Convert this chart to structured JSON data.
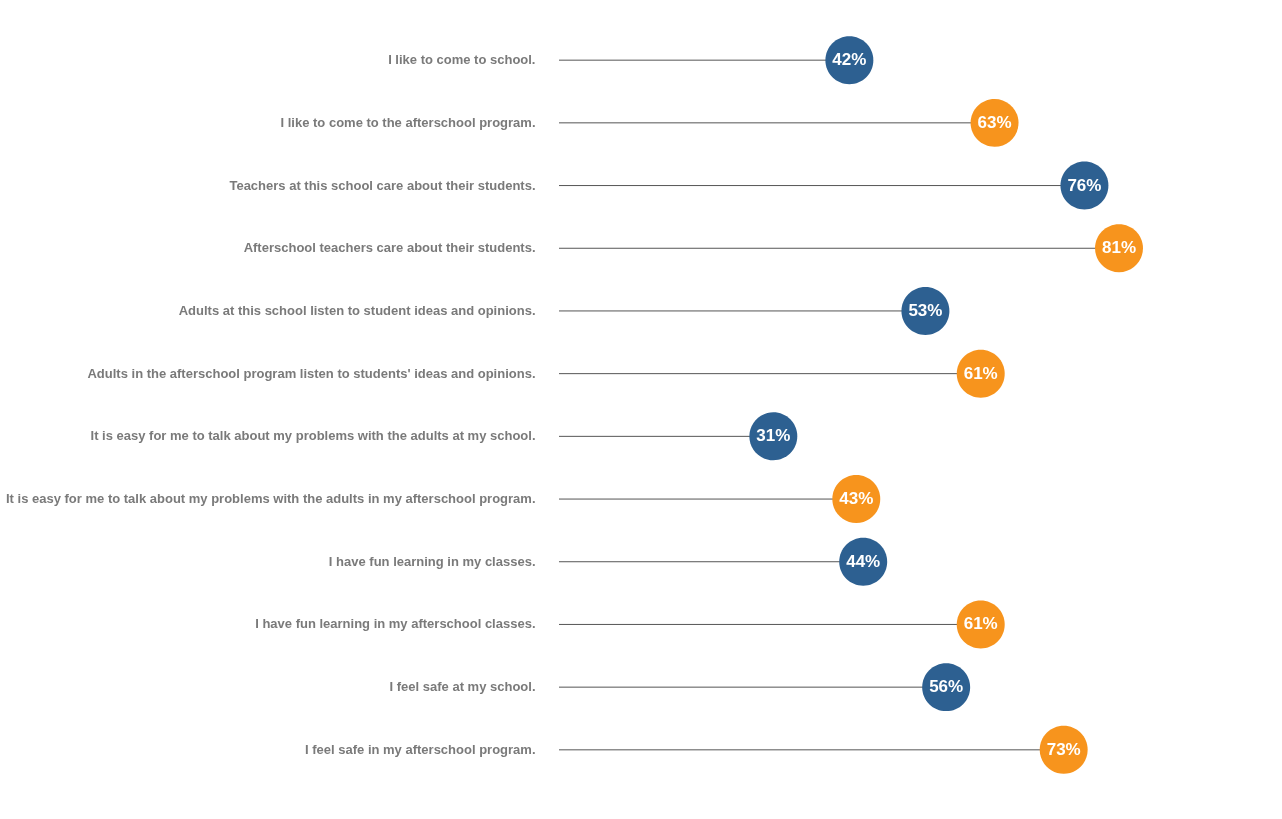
{
  "chart_data": {
    "type": "lollipop",
    "orientation": "horizontal",
    "categories": [
      "I like to come to school.",
      "I like to come to the afterschool program.",
      "Teachers at this school care about their  students.",
      "Afterschool teachers care about their students.",
      "Adults at this school listen to student ideas and opinions.",
      "Adults in the afterschool program listen to students' ideas and opinions.",
      "It is easy  for me to talk about my problems with the adults at my school.",
      "It is easy for me to talk about my problems with the adults in my afterschool program.",
      "I have fun learning in my classes.",
      "I have fun learning in my afterschool classes.",
      "I feel safe at my school.",
      "I feel safe in my afterschool program."
    ],
    "values": [
      42,
      63,
      76,
      81,
      53,
      61,
      31,
      43,
      44,
      61,
      56,
      73
    ],
    "value_labels": [
      "42%",
      "63%",
      "76%",
      "81%",
      "53%",
      "61%",
      "31%",
      "43%",
      "44%",
      "61%",
      "56%",
      "73%"
    ],
    "colors": [
      "#2d6091",
      "#f7941d",
      "#2d6091",
      "#f7941d",
      "#2d6091",
      "#f7941d",
      "#2d6091",
      "#f7941d",
      "#2d6091",
      "#f7941d",
      "#2d6091",
      "#f7941d"
    ],
    "marker": "circle"
  }
}
